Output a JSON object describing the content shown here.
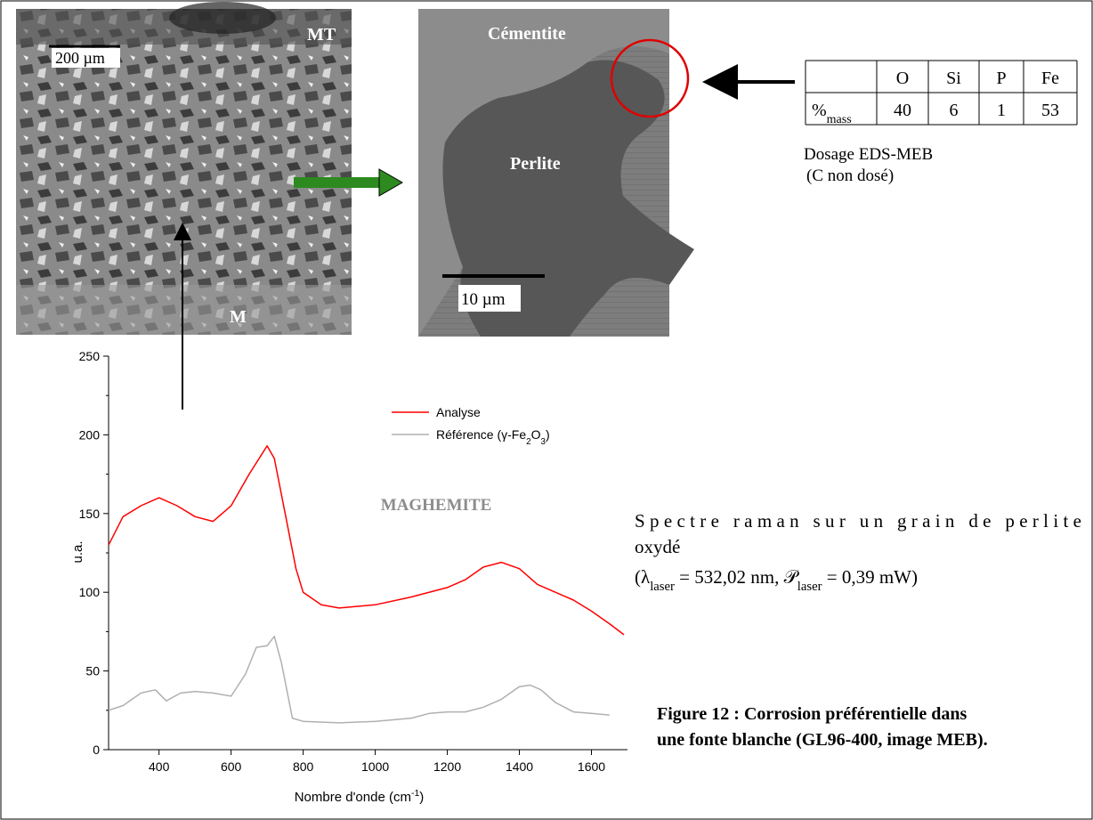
{
  "chart_data": {
    "type": "line",
    "x_label": "Nombre d'onde (cm-1)",
    "y_label": "u.a.",
    "annotation": "MAGHEMITE",
    "xlim": [
      260,
      1700
    ],
    "ylim": [
      0,
      250
    ],
    "xticks": [
      400,
      600,
      800,
      1000,
      1200,
      1400,
      1600
    ],
    "yticks": [
      0,
      50,
      100,
      150,
      200,
      250
    ],
    "legend": "upper center",
    "series": [
      {
        "name": "Analyse",
        "color": "#ff0000",
        "x": [
          260,
          300,
          350,
          400,
          450,
          500,
          550,
          600,
          650,
          700,
          720,
          750,
          780,
          800,
          850,
          900,
          1000,
          1100,
          1200,
          1250,
          1300,
          1350,
          1400,
          1450,
          1500,
          1550,
          1600,
          1650,
          1690
        ],
        "values": [
          130,
          148,
          155,
          160,
          155,
          148,
          145,
          155,
          175,
          193,
          185,
          150,
          115,
          100,
          92,
          90,
          92,
          97,
          103,
          108,
          116,
          119,
          115,
          105,
          100,
          95,
          88,
          80,
          73
        ]
      },
      {
        "name": "Référence (γ-Fe2O3)",
        "color": "#b0b0b0",
        "x": [
          260,
          300,
          350,
          390,
          420,
          460,
          500,
          550,
          600,
          640,
          670,
          700,
          720,
          740,
          770,
          800,
          900,
          1000,
          1100,
          1150,
          1200,
          1250,
          1300,
          1350,
          1400,
          1430,
          1460,
          1500,
          1550,
          1600,
          1650
        ],
        "values": [
          25,
          28,
          36,
          38,
          31,
          36,
          37,
          36,
          34,
          48,
          65,
          66,
          72,
          55,
          20,
          18,
          17,
          18,
          20,
          23,
          24,
          24,
          27,
          32,
          40,
          41,
          38,
          30,
          24,
          23,
          22
        ]
      }
    ]
  },
  "images": [
    {
      "labels": [
        "MT",
        "200 µm",
        "M"
      ]
    },
    {
      "labels": [
        "Cémentite",
        "Perlite",
        "10 µm"
      ]
    }
  ],
  "table": {
    "header": [
      "O",
      "Si",
      "P",
      "Fe"
    ],
    "row_label": [
      {
        "text": "%"
      },
      {
        "text": "mass",
        "sub": true
      }
    ],
    "values": [
      40,
      6,
      1,
      53
    ]
  },
  "eds_caption": [
    "Dosage EDS-MEB",
    "(C non dosé)"
  ],
  "spectre_caption": {
    "lines": [
      "Spectre raman sur un grain de perlite",
      "oxydé"
    ],
    "conditions": [
      {
        "text": "(λ"
      },
      {
        "text": "laser",
        "sub": true
      },
      {
        "text": " = 532,02 nm, "
      },
      {
        "text": "𝒫"
      },
      {
        "text": "laser",
        "sub": true
      },
      {
        "text": " = 0,39 mW)"
      }
    ]
  },
  "figure_caption": [
    "Figure 12 : Corrosion préférentielle dans",
    "une fonte blanche (GL96-400, image MEB)."
  ]
}
